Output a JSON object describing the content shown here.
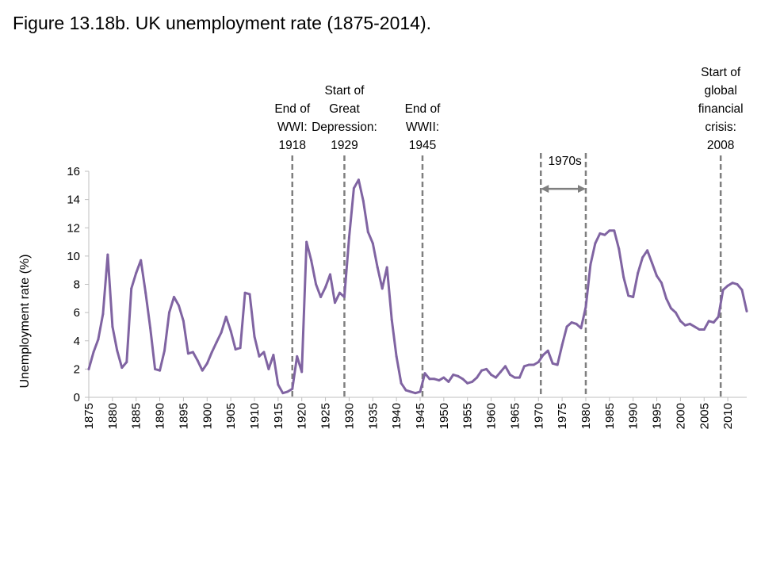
{
  "title": "Figure 13.18b. UK unemployment rate (1875-2014).",
  "chart_data": {
    "type": "line",
    "title": "Figure 13.18b. UK unemployment rate (1875-2014).",
    "xlabel": "",
    "ylabel": "Unemployment  rate (%)",
    "xlim": [
      1875,
      2014
    ],
    "ylim": [
      0,
      16
    ],
    "yticks": [
      0,
      2,
      4,
      6,
      8,
      10,
      12,
      14,
      16
    ],
    "xticks": [
      1875,
      1880,
      1885,
      1890,
      1895,
      1900,
      1905,
      1910,
      1915,
      1920,
      1925,
      1930,
      1935,
      1940,
      1945,
      1950,
      1955,
      1960,
      1965,
      1970,
      1975,
      1980,
      1985,
      1990,
      1995,
      2000,
      2005,
      2010
    ],
    "grid": false,
    "line_color": "#8064a2",
    "annotation_color": "#7f7f7f",
    "series": [
      {
        "name": "",
        "x": [
          1875,
          1876,
          1877,
          1878,
          1879,
          1880,
          1881,
          1882,
          1883,
          1884,
          1885,
          1886,
          1887,
          1888,
          1889,
          1890,
          1891,
          1892,
          1893,
          1894,
          1895,
          1896,
          1897,
          1898,
          1899,
          1900,
          1901,
          1902,
          1903,
          1904,
          1905,
          1906,
          1907,
          1908,
          1909,
          1910,
          1911,
          1912,
          1913,
          1914,
          1915,
          1916,
          1917,
          1918,
          1919,
          1920,
          1921,
          1922,
          1923,
          1924,
          1925,
          1926,
          1927,
          1928,
          1929,
          1930,
          1931,
          1932,
          1933,
          1934,
          1935,
          1936,
          1937,
          1938,
          1939,
          1940,
          1941,
          1942,
          1943,
          1944,
          1945,
          1946,
          1947,
          1948,
          1949,
          1950,
          1951,
          1952,
          1953,
          1954,
          1955,
          1956,
          1957,
          1958,
          1959,
          1960,
          1961,
          1962,
          1963,
          1964,
          1965,
          1966,
          1967,
          1968,
          1969,
          1970,
          1971,
          1972,
          1973,
          1974,
          1975,
          1976,
          1977,
          1978,
          1979,
          1980,
          1981,
          1982,
          1983,
          1984,
          1985,
          1986,
          1987,
          1988,
          1989,
          1990,
          1991,
          1992,
          1993,
          1994,
          1995,
          1996,
          1997,
          1998,
          1999,
          2000,
          2001,
          2002,
          2003,
          2004,
          2005,
          2006,
          2007,
          2008,
          2009,
          2010,
          2011,
          2012,
          2013,
          2014
        ],
        "values": [
          2.0,
          3.2,
          4.1,
          5.9,
          10.1,
          5.0,
          3.3,
          2.1,
          2.5,
          7.7,
          8.8,
          9.7,
          7.4,
          4.9,
          2.0,
          1.9,
          3.3,
          6.0,
          7.1,
          6.5,
          5.4,
          3.1,
          3.2,
          2.6,
          1.9,
          2.4,
          3.2,
          3.9,
          4.6,
          5.7,
          4.7,
          3.4,
          3.5,
          7.4,
          7.3,
          4.3,
          2.9,
          3.2,
          2.0,
          3.0,
          0.9,
          0.3,
          0.4,
          0.6,
          2.9,
          1.8,
          11.0,
          9.7,
          8.0,
          7.1,
          7.8,
          8.7,
          6.7,
          7.4,
          7.1,
          11.3,
          14.8,
          15.4,
          13.9,
          11.7,
          10.9,
          9.2,
          7.7,
          9.2,
          5.5,
          2.9,
          1.0,
          0.5,
          0.4,
          0.3,
          0.4,
          1.7,
          1.3,
          1.3,
          1.2,
          1.4,
          1.1,
          1.6,
          1.5,
          1.3,
          1.0,
          1.1,
          1.4,
          1.9,
          2.0,
          1.6,
          1.4,
          1.8,
          2.2,
          1.6,
          1.4,
          1.4,
          2.2,
          2.3,
          2.3,
          2.5,
          3.0,
          3.3,
          2.4,
          2.3,
          3.7,
          5.0,
          5.3,
          5.2,
          4.9,
          6.4,
          9.4,
          10.9,
          11.6,
          11.5,
          11.8,
          11.8,
          10.5,
          8.5,
          7.2,
          7.1,
          8.8,
          9.9,
          10.4,
          9.5,
          8.6,
          8.1,
          7.0,
          6.3,
          6.0,
          5.4,
          5.1,
          5.2,
          5.0,
          4.8,
          4.8,
          5.4,
          5.3,
          5.7,
          7.6,
          7.9,
          8.1,
          8.0,
          7.6,
          6.1
        ]
      }
    ],
    "annotations": [
      {
        "kind": "vline",
        "x": 1918,
        "lines": [
          "End of",
          "WWI:",
          "1918"
        ]
      },
      {
        "kind": "vline",
        "x": 1929,
        "lines": [
          "Start of",
          "Great",
          "Depression:",
          "1929"
        ]
      },
      {
        "kind": "vline",
        "x": 1945.5,
        "lines": [
          "End of",
          "WWII:",
          "1945"
        ]
      },
      {
        "kind": "vline",
        "x": 1970.5,
        "lines": []
      },
      {
        "kind": "vline",
        "x": 1980,
        "lines": []
      },
      {
        "kind": "arrow",
        "x_start": 1970.5,
        "x_end": 1980,
        "y": 15.6,
        "label": "1970s"
      },
      {
        "kind": "vline",
        "x": 2008.5,
        "lines": [
          "Start of",
          "global",
          "financial",
          "crisis:",
          "2008"
        ]
      }
    ]
  }
}
